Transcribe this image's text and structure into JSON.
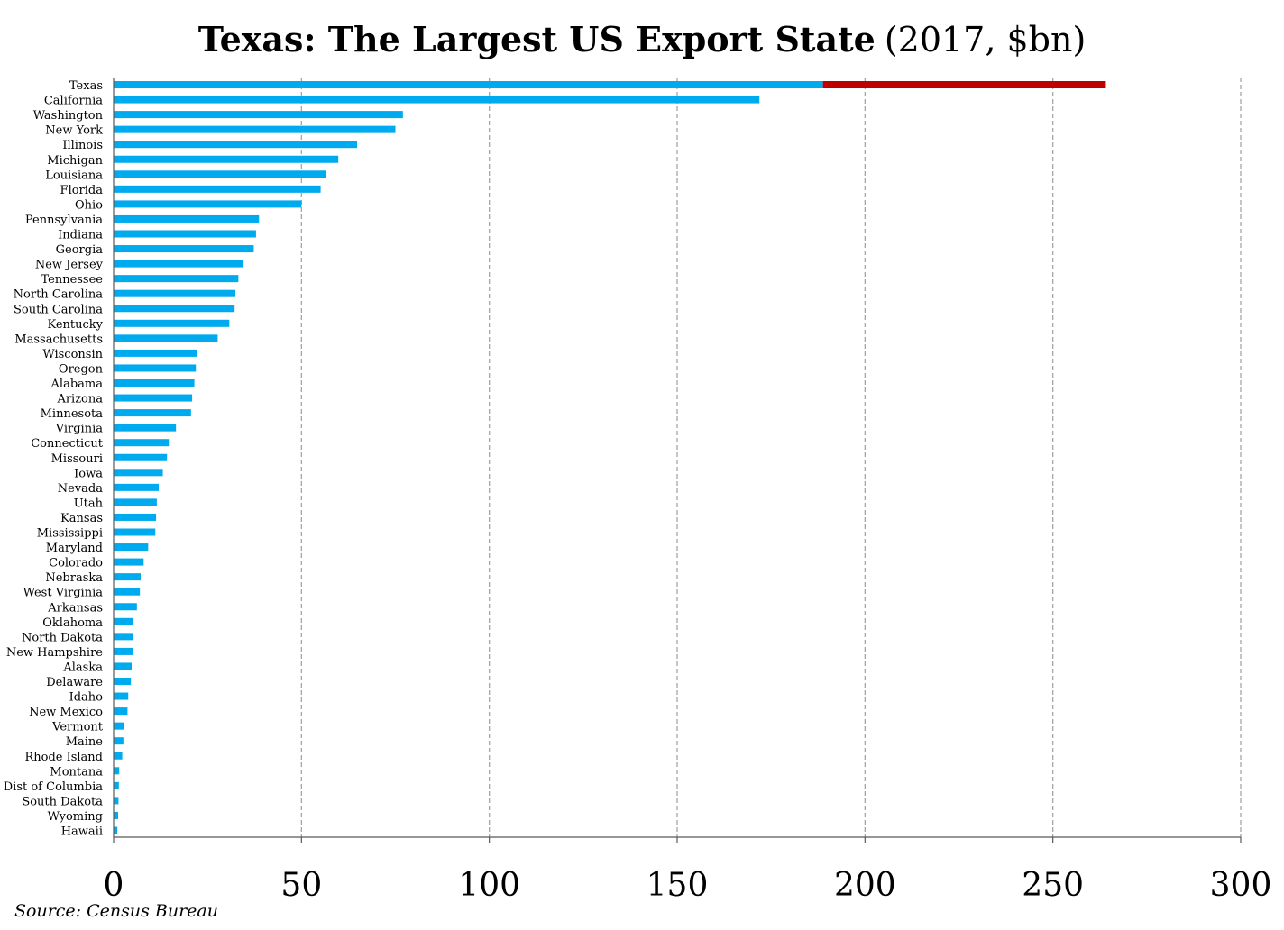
{
  "title_main": "Texas: The Largest US Export State",
  "title_sub": "(2017, $bn)",
  "source": "Source: Census Bureau",
  "colors": {
    "bar": "#00aaee",
    "highlight": "#c00000",
    "grid": "#a6a6a6",
    "axis": "#595959"
  },
  "chart_data": {
    "type": "bar",
    "orientation": "horizontal",
    "xlim": [
      0,
      300
    ],
    "x_ticks": [
      "0",
      "50",
      "100",
      "150",
      "200",
      "250",
      "300"
    ],
    "grid": "vertical dashed",
    "categories": [
      "Texas",
      "California",
      "Washington",
      "New York",
      "Illinois",
      "Michigan",
      "Louisiana",
      "Florida",
      "Ohio",
      "Pennsylvania",
      "Indiana",
      "Georgia",
      "New Jersey",
      "Tennessee",
      "North Carolina",
      "South Carolina",
      "Kentucky",
      "Massachusetts",
      "Wisconsin",
      "Oregon",
      "Alabama",
      "Arizona",
      "Minnesota",
      "Virginia",
      "Connecticut",
      "Missouri",
      "Iowa",
      "Nevada",
      "Utah",
      "Kansas",
      "Mississippi",
      "Maryland",
      "Colorado",
      "Nebraska",
      "West Virginia",
      "Arkansas",
      "Oklahoma",
      "North Dakota",
      "New Hampshire",
      "Alaska",
      "Delaware",
      "Idaho",
      "New Mexico",
      "Vermont",
      "Maine",
      "Rhode Island",
      "Montana",
      "Dist of Columbia",
      "South Dakota",
      "Wyoming",
      "Hawaii"
    ],
    "values": [
      264.1,
      171.9,
      77.0,
      75.0,
      64.8,
      59.8,
      56.5,
      55.1,
      50.0,
      38.7,
      37.9,
      37.3,
      34.5,
      33.2,
      32.4,
      32.2,
      30.8,
      27.7,
      22.3,
      21.9,
      21.5,
      20.9,
      20.6,
      16.6,
      14.7,
      14.2,
      13.1,
      12.0,
      11.5,
      11.3,
      11.1,
      9.2,
      8.0,
      7.2,
      7.0,
      6.2,
      5.3,
      5.2,
      5.1,
      4.8,
      4.6,
      3.9,
      3.7,
      2.7,
      2.6,
      2.3,
      1.5,
      1.4,
      1.3,
      1.2,
      1.0
    ],
    "highlight": {
      "category": "Texas",
      "from": 188.8,
      "to": 264.1
    }
  }
}
